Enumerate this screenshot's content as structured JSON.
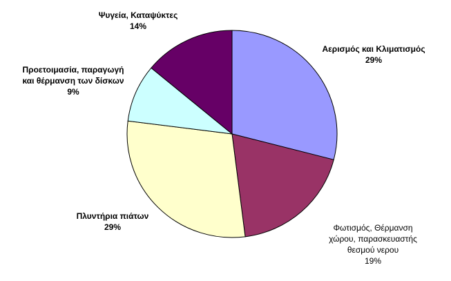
{
  "chart_data": {
    "type": "pie",
    "title": "",
    "slices": [
      {
        "label_lines": [
          "Αερισμός και Κλιματισμός"
        ],
        "value_label": "29%",
        "value": 29,
        "color": "#9999ff"
      },
      {
        "label_lines": [
          "Φωτισμός, Θέρμανση",
          "χώρου, παρασκευαστής",
          "θεσμού νερου"
        ],
        "value_label": "19%",
        "value": 19,
        "color": "#993366"
      },
      {
        "label_lines": [
          "Πλυντήρια πιάτων"
        ],
        "value_label": "29%",
        "value": 29,
        "color": "#ffffcc"
      },
      {
        "label_lines": [
          "Προετοιμασία, παραγωγή",
          "και θέρμανση των δίσκων"
        ],
        "value_label": "9%",
        "value": 9,
        "color": "#ccffff"
      },
      {
        "label_lines": [
          "Ψυγεία, Καταψύκτες"
        ],
        "value_label": "14%",
        "value": 14,
        "color": "#660066"
      }
    ],
    "legend": "none"
  }
}
